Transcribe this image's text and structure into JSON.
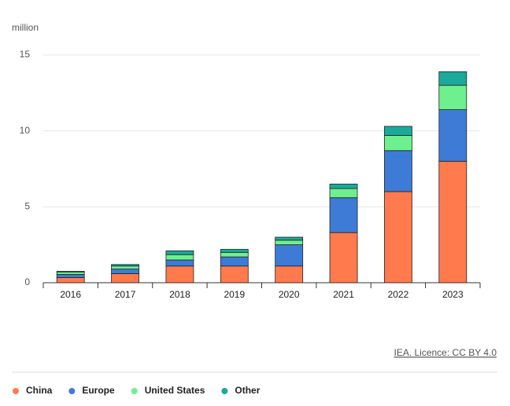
{
  "chart_data": {
    "type": "stacked_bar",
    "y_label": "million",
    "source": "IEA. Licence: CC BY 4.0",
    "categories": [
      "2016",
      "2017",
      "2018",
      "2019",
      "2020",
      "2021",
      "2022",
      "2023"
    ],
    "series": [
      {
        "name": "China",
        "color": "#ff7a4d",
        "values": [
          0.34,
          0.6,
          1.1,
          1.1,
          1.1,
          3.3,
          6.0,
          8.0
        ]
      },
      {
        "name": "Europe",
        "color": "#3e7bd6",
        "values": [
          0.21,
          0.3,
          0.4,
          0.6,
          1.4,
          2.3,
          2.7,
          3.4
        ]
      },
      {
        "name": "United States",
        "color": "#6ef08f",
        "values": [
          0.16,
          0.2,
          0.35,
          0.3,
          0.3,
          0.6,
          1.0,
          1.6
        ]
      },
      {
        "name": "Other",
        "color": "#1aa99a",
        "values": [
          0.04,
          0.1,
          0.25,
          0.2,
          0.2,
          0.3,
          0.6,
          0.9
        ]
      }
    ],
    "ylim": [
      0,
      15
    ],
    "yticks": [
      0,
      5,
      10,
      15
    ],
    "grid": true
  }
}
